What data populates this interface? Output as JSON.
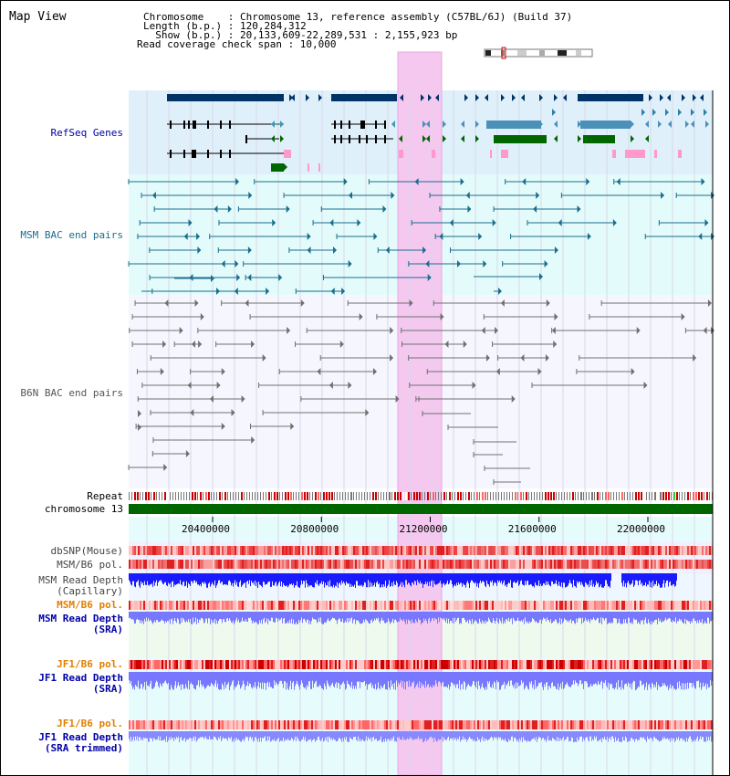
{
  "page": {
    "title": "Map View"
  },
  "info": {
    "line1": "Chromosome    : Chromosome 13, reference assembly (C57BL/6J) (Build 37)",
    "line2": "Length (b.p.) : 120,284,312",
    "line3": "  Show (b.p.) : 20,133,609-22,289,531 : 2,155,923 bp",
    "line4": "Read coverage check span : 10,000"
  },
  "colors": {
    "refseq_bg": "#dff0fa",
    "msm_bac_bg": "#e4fbfb",
    "refseq_dark": "#003366",
    "refseq_mid": "#4a90b8",
    "refseq_green": "#006600",
    "refseq_pink": "#ff99cc",
    "msm_line": "#1a6e8e",
    "b6n_line": "#707070",
    "highlight": "#f5c8f0",
    "chrom_green": "#006600",
    "snp_red": "#e02020",
    "depth_blue": "#1a1aff",
    "depth_light": "#7777ff",
    "label_blue": "#0000aa",
    "label_orange": "#e08000"
  },
  "tracks": {
    "refseq": "RefSeq Genes",
    "msm_bac": "MSM BAC end pairs",
    "b6n_bac": "B6N BAC end pairs",
    "repeat": "Repeat",
    "chromosome": "chromosome 13",
    "dbsnp": "dbSNP(Mouse)",
    "msm_b6_pol": "MSM/B6 pol.",
    "msm_read_depth_cap": "MSM Read Depth\n(Capillary)",
    "msm_b6_pol_sra": "MSM/B6 pol.",
    "msm_read_depth_sra": "MSM Read Depth\n(SRA)",
    "jf1_b6_pol": "JF1/B6 pol.",
    "jf1_read_depth_sra": "JF1 Read Depth\n(SRA)",
    "jf1_b6_pol_trim": "JF1/B6 pol.",
    "jf1_read_depth_trim": "JF1 Read Depth\n(SRA trimmed)"
  },
  "axis": {
    "ticks": [
      {
        "bp": 20400000,
        "label": "20400000"
      },
      {
        "bp": 20800000,
        "label": "20800000"
      },
      {
        "bp": 21200000,
        "label": "21200000"
      },
      {
        "bp": 21600000,
        "label": "21600000"
      },
      {
        "bp": 22000000,
        "label": "22000000"
      }
    ]
  }
}
